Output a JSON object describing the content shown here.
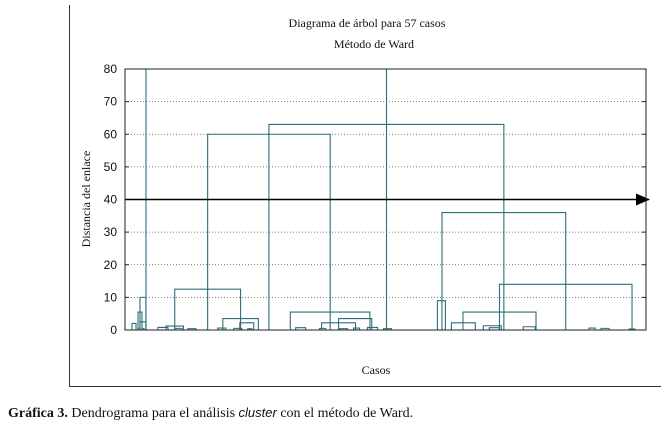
{
  "chart_data": {
    "type": "dendrogram",
    "title": "Diagrama de árbol para 57 casos",
    "subtitle": "Método de Ward",
    "xlabel": "Casos",
    "ylabel": "Distancia del enlace",
    "ylim": [
      0,
      80
    ],
    "yticks": [
      "0",
      "10",
      "20",
      "30",
      "40",
      "50",
      "60",
      "70",
      "80"
    ],
    "grid": true,
    "cut_line": 40,
    "n_cases": 57,
    "links": [
      {
        "x1": 8,
        "x2": 128.5,
        "h": 80
      },
      {
        "x1": 5,
        "x2": 8,
        "h": 10
      },
      {
        "x1": 1,
        "x2": 3,
        "h": 2
      },
      {
        "x1": 4,
        "x2": 6,
        "h": 5.5
      },
      {
        "x1": 5,
        "x2": 8,
        "h": 2.5
      },
      {
        "x1": 4,
        "x2": 5,
        "h": 0.5
      },
      {
        "x1": 6,
        "x2": 7,
        "h": 0.5
      },
      {
        "x1": 69.6,
        "x2": 187.3,
        "h": 63
      },
      {
        "x1": 38.9,
        "x2": 100.3,
        "h": 60
      },
      {
        "x1": 22.4,
        "x2": 55.4,
        "h": 12.5
      },
      {
        "x1": 18,
        "x2": 26.8,
        "h": 1.2
      },
      {
        "x1": 14,
        "x2": 19,
        "h": 0.8
      },
      {
        "x1": 23,
        "x2": 26,
        "h": 0.5
      },
      {
        "x1": 29,
        "x2": 33,
        "h": 0.4
      },
      {
        "x1": 46.5,
        "x2": 64.3,
        "h": 3.5
      },
      {
        "x1": 55,
        "x2": 62,
        "h": 2.2
      },
      {
        "x1": 44,
        "x2": 48,
        "h": 0.6
      },
      {
        "x1": 52,
        "x2": 56,
        "h": 0.5
      },
      {
        "x1": 59,
        "x2": 61,
        "h": 0.4
      },
      {
        "x1": 80.3,
        "x2": 120.2,
        "h": 5.5
      },
      {
        "x1": 83,
        "x2": 88,
        "h": 0.7
      },
      {
        "x1": 104.5,
        "x2": 121.1,
        "h": 3.5
      },
      {
        "x1": 96,
        "x2": 113,
        "h": 2.2
      },
      {
        "x1": 119,
        "x2": 124,
        "h": 0.8
      },
      {
        "x1": 127,
        "x2": 131,
        "h": 0.4
      },
      {
        "x1": 95,
        "x2": 98,
        "h": 0.5
      },
      {
        "x1": 112,
        "x2": 115,
        "h": 0.6
      },
      {
        "x1": 105,
        "x2": 109,
        "h": 0.4
      },
      {
        "x1": 156.3,
        "x2": 218.3,
        "h": 36
      },
      {
        "x1": 154,
        "x2": 158,
        "h": 9
      },
      {
        "x1": 185.1,
        "x2": 251.5,
        "h": 14
      },
      {
        "x1": 166.8,
        "x2": 203.4,
        "h": 5.5
      },
      {
        "x1": 161,
        "x2": 173,
        "h": 2.2
      },
      {
        "x1": 177,
        "x2": 186,
        "h": 1.3
      },
      {
        "x1": 180,
        "x2": 185,
        "h": 0.7
      },
      {
        "x1": 197,
        "x2": 203,
        "h": 1
      },
      {
        "x1": 230,
        "x2": 233,
        "h": 0.6
      },
      {
        "x1": 236,
        "x2": 240,
        "h": 0.5
      },
      {
        "x1": 250,
        "x2": 253,
        "h": 0.3
      }
    ]
  },
  "caption": {
    "lead": "Gráfica 3.",
    "before": " Dendrograma para el análisis ",
    "term": "cluster",
    "after": " con el método de Ward."
  },
  "colors": {
    "tree": "#2b6f7a",
    "grid": "#555555",
    "arrow": "#000000"
  }
}
